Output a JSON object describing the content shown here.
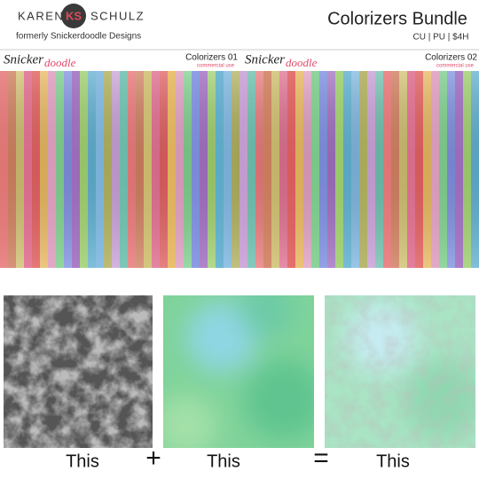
{
  "header": {
    "brand_left": "KAREN",
    "brand_mono": "KS",
    "brand_right": "SCHULZ",
    "tagline": "formerly Snickerdoodle Designs",
    "title": "Colorizers Bundle",
    "subtitle": "CU | PU | $4H"
  },
  "banner": {
    "logos": [
      "Snicker",
      "doodle"
    ],
    "products": [
      {
        "name": "Colorizers 01",
        "note": "commercial use"
      },
      {
        "name": "Colorizers 02",
        "note": "commercial use"
      }
    ]
  },
  "equation": {
    "terms": [
      "This",
      "This",
      "This"
    ],
    "operators": [
      "+",
      "="
    ]
  }
}
